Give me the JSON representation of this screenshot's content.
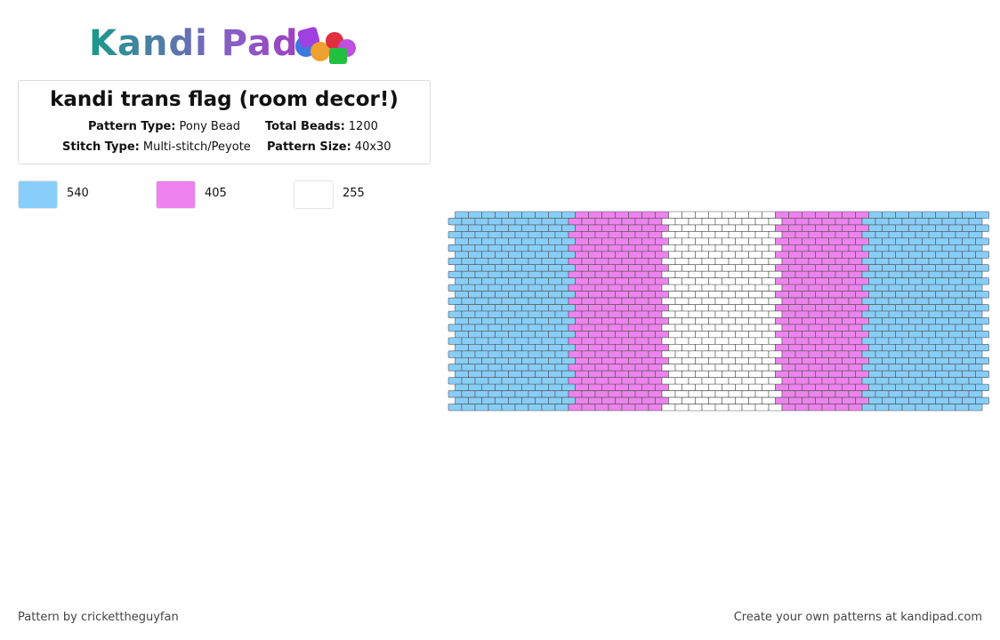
{
  "header": {
    "logo": "Kandi Pad"
  },
  "title": "kandi trans flag (room decor!)",
  "info": [
    {
      "label": "Pattern Type:",
      "value": "Pony Bead"
    },
    {
      "label": "Total Beads:",
      "value": "1200"
    },
    {
      "label": "Stitch Type:",
      "value": "Multi-stitch/Peyote"
    },
    {
      "label": "Pattern Size:",
      "value": "40x30"
    }
  ],
  "colors": [
    {
      "color": "#87cefa",
      "count": "540"
    },
    {
      "color": "#ee82ee",
      "count": "405"
    },
    {
      "color": "#ffffff",
      "count": "255"
    }
  ],
  "footer": {
    "credit": "Pattern by crickettheguyfan",
    "promo": "Create your own patterns at kandipad.com"
  }
}
